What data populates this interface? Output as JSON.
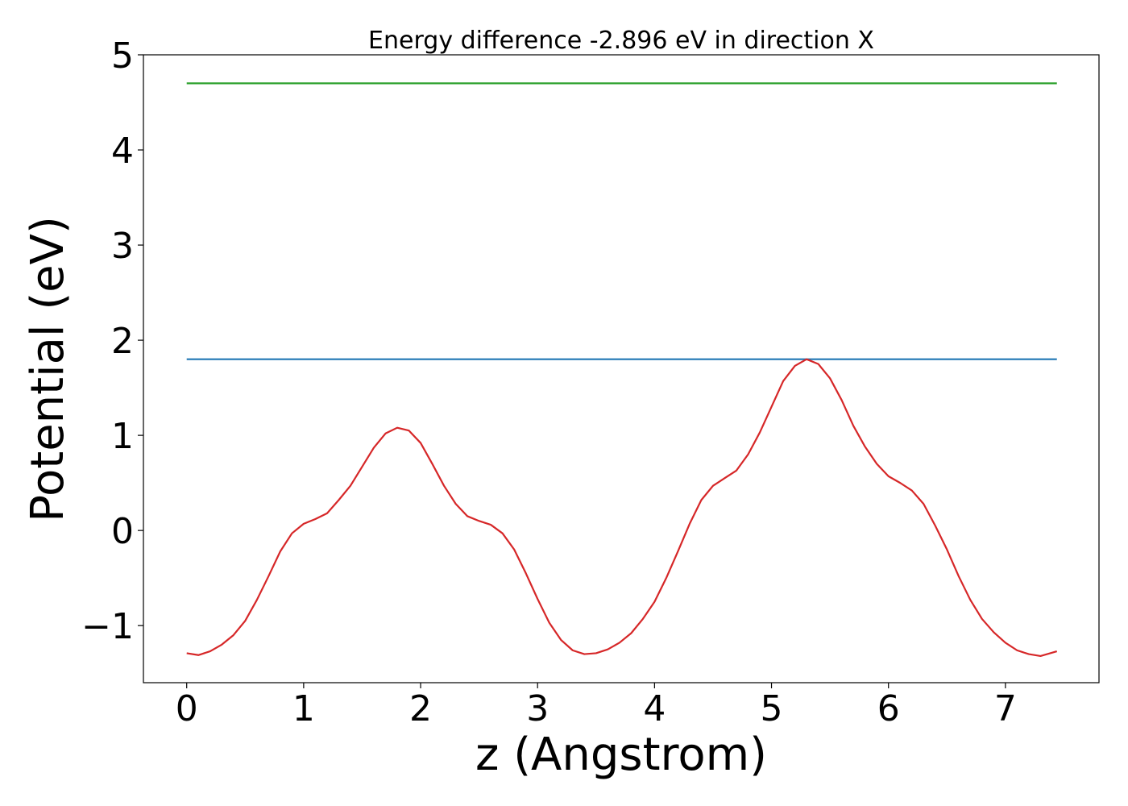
{
  "chart_data": {
    "type": "line",
    "title": "Energy difference -2.896 eV in direction X",
    "xlabel": "z (Angstrom)",
    "ylabel": "Potential (eV)",
    "xlim": [
      -0.37,
      7.8
    ],
    "ylim": [
      -1.6,
      5.0
    ],
    "xticks": [
      0,
      1,
      2,
      3,
      4,
      5,
      6,
      7
    ],
    "yticks": [
      -1,
      0,
      1,
      2,
      3,
      4,
      5
    ],
    "xtick_labels": [
      "0",
      "1",
      "2",
      "3",
      "4",
      "5",
      "6",
      "7"
    ],
    "ytick_labels": [
      "−1",
      "0",
      "1",
      "2",
      "3",
      "4",
      "5"
    ],
    "grid": false,
    "legend": "none",
    "series": [
      {
        "color": "#2ca02c",
        "x": [
          0,
          7.44
        ],
        "y": [
          4.7,
          4.7
        ]
      },
      {
        "color": "#1f77b4",
        "x": [
          0,
          7.44
        ],
        "y": [
          1.8,
          1.8
        ]
      },
      {
        "color": "#d62728",
        "x": [
          0,
          0.1,
          0.2,
          0.3,
          0.4,
          0.5,
          0.6,
          0.7,
          0.8,
          0.9,
          1.0,
          1.1,
          1.2,
          1.3,
          1.4,
          1.5,
          1.6,
          1.7,
          1.8,
          1.9,
          2.0,
          2.1,
          2.2,
          2.3,
          2.4,
          2.5,
          2.6,
          2.7,
          2.8,
          2.9,
          3.0,
          3.1,
          3.2,
          3.3,
          3.4,
          3.5,
          3.6,
          3.7,
          3.8,
          3.9,
          4.0,
          4.1,
          4.2,
          4.3,
          4.4,
          4.5,
          4.6,
          4.7,
          4.8,
          4.9,
          5.0,
          5.1,
          5.2,
          5.3,
          5.4,
          5.5,
          5.6,
          5.7,
          5.8,
          5.9,
          6.0,
          6.1,
          6.2,
          6.3,
          6.4,
          6.5,
          6.6,
          6.7,
          6.8,
          6.9,
          7.0,
          7.1,
          7.2,
          7.3,
          7.44
        ],
        "y": [
          -1.29,
          -1.31,
          -1.27,
          -1.2,
          -1.1,
          -0.95,
          -0.73,
          -0.48,
          -0.22,
          -0.03,
          0.07,
          0.12,
          0.18,
          0.32,
          0.47,
          0.67,
          0.87,
          1.02,
          1.08,
          1.05,
          0.92,
          0.7,
          0.47,
          0.28,
          0.15,
          0.1,
          0.06,
          -0.03,
          -0.2,
          -0.45,
          -0.72,
          -0.97,
          -1.15,
          -1.26,
          -1.3,
          -1.29,
          -1.25,
          -1.18,
          -1.08,
          -0.93,
          -0.75,
          -0.5,
          -0.22,
          0.07,
          0.32,
          0.47,
          0.55,
          0.63,
          0.8,
          1.03,
          1.3,
          1.57,
          1.73,
          1.8,
          1.75,
          1.6,
          1.37,
          1.1,
          0.88,
          0.7,
          0.57,
          0.5,
          0.42,
          0.28,
          0.05,
          -0.2,
          -0.48,
          -0.73,
          -0.93,
          -1.07,
          -1.18,
          -1.26,
          -1.3,
          -1.32,
          -1.27
        ]
      }
    ]
  }
}
